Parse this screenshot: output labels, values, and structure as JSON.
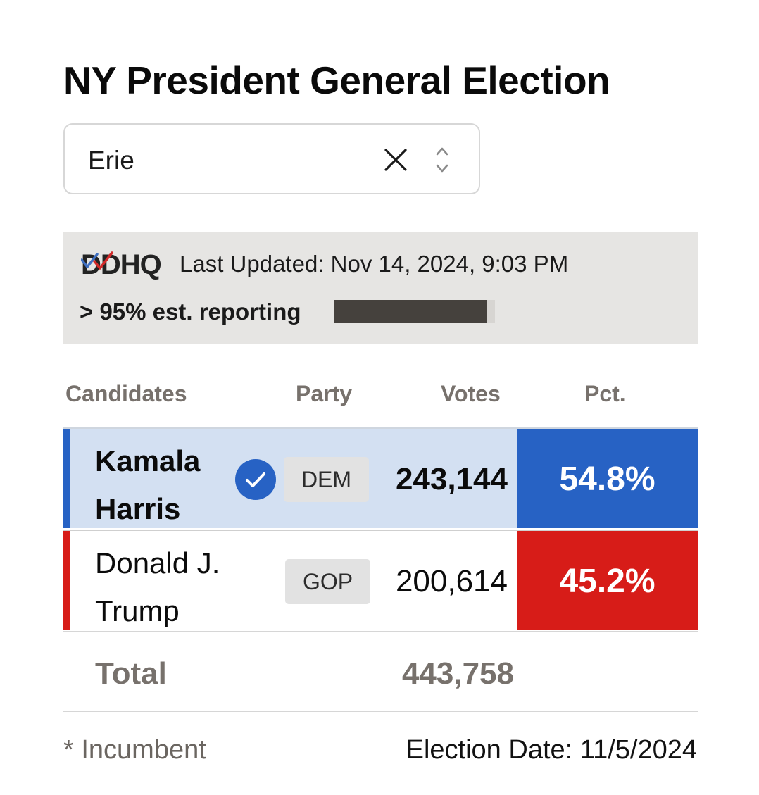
{
  "title": "NY President General Election",
  "county_select": {
    "value": "Erie"
  },
  "source": {
    "logo_text": "DDHQ",
    "last_updated": "Last Updated: Nov 14, 2024, 9:03 PM",
    "reporting_label": "> 95% est. reporting",
    "reporting_progress": 0.95
  },
  "table": {
    "headers": {
      "candidates": "Candidates",
      "party": "Party",
      "votes": "Votes",
      "pct": "Pct."
    },
    "rows": [
      {
        "name_line1": "Kamala",
        "name_line2": "Harris",
        "winner": true,
        "party": "DEM",
        "votes": "243,144",
        "pct": "54.8%",
        "color": "#2762c4"
      },
      {
        "name_line1": "Donald J.",
        "name_line2": "Trump",
        "winner": false,
        "party": "GOP",
        "votes": "200,614",
        "pct": "45.2%",
        "color": "#d71c18"
      }
    ],
    "total_label": "Total",
    "total_votes": "443,758"
  },
  "footer": {
    "incumbent_note": "* Incumbent",
    "election_date": "Election Date: 11/5/2024"
  }
}
